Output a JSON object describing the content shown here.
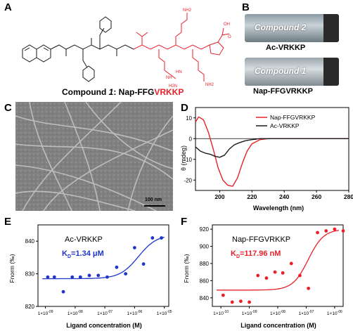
{
  "panels": {
    "a": "A",
    "b": "B",
    "c": "C",
    "d": "D",
    "e": "E",
    "f": "F"
  },
  "panel_a": {
    "caption_prefix": "Compound ",
    "caption_num": "1",
    "caption_colon": ": Nap-FFG",
    "caption_red": "VRKKP",
    "labels": [
      "NH2",
      "NH2",
      "HN",
      "NH",
      "H2N",
      "OH",
      "O"
    ]
  },
  "panel_b": {
    "vial_top_label": "Compound 2",
    "vial_top_caption": "Ac-VRKKP",
    "vial_bottom_label": "Compound 1",
    "vial_bottom_caption": "Nap-FFGVRKKP"
  },
  "panel_c": {
    "scale_label": "100 nm"
  },
  "panel_d": {
    "ylabel": "θ (mdeg)",
    "xlabel": "Wavelength (nm)",
    "xticks": [
      "200",
      "220",
      "240",
      "260",
      "280"
    ],
    "yticks": [
      "10",
      "0",
      "-10",
      "-20"
    ],
    "legend": [
      "Nap-FFGVRKKP",
      "Ac-VRKKP"
    ],
    "colors": {
      "red": "#e8202a",
      "black": "#1a1a1a"
    }
  },
  "panel_e": {
    "title": "Ac-VRKKP",
    "kd_label": "K",
    "kd_sub": "D",
    "kd_value": "=1.34 μM",
    "ylabel": "Fnorm (‰)",
    "xlabel": "Ligand concentration (M)",
    "yticks": [
      "840",
      "830",
      "820"
    ],
    "xticks": [
      "1×10",
      "1×10",
      "1×10",
      "1×10",
      "1×10"
    ],
    "xexp": [
      "-09",
      "-08",
      "-07",
      "-06",
      "-05"
    ],
    "color": "#1f35c9"
  },
  "panel_f": {
    "title": "Nap-FFGVRKKP",
    "kd_label": "K",
    "kd_sub": "D",
    "kd_value": "=117.96 nM",
    "ylabel": "Fnorm (‰)",
    "xlabel": "Ligand concentration (M)",
    "yticks": [
      "920",
      "900",
      "880",
      "860",
      "840"
    ],
    "xticks": [
      "1×10",
      "1×10",
      "1×10",
      "1×10",
      "1×10"
    ],
    "xexp": [
      "-10",
      "-09",
      "-08",
      "-07",
      "-06"
    ],
    "color": "#e8202a"
  },
  "chart_data": [
    {
      "type": "line",
      "ylabel": "θ (mdeg)",
      "xlabel": "Wavelength (nm)",
      "xlim": [
        185,
        280
      ],
      "ylim": [
        -25,
        15
      ],
      "series": [
        {
          "name": "Nap-FFGVRKKP",
          "x": [
            185,
            187,
            190,
            193,
            196,
            199,
            202,
            205,
            208,
            211,
            214,
            217,
            220,
            225,
            230,
            240,
            260,
            280
          ],
          "y": [
            8,
            10.5,
            9,
            3,
            -5,
            -14,
            -20,
            -22.5,
            -23,
            -19,
            -12,
            -6,
            -2.5,
            -0.5,
            0,
            0,
            0,
            0
          ]
        },
        {
          "name": "Ac-VRKKP",
          "x": [
            185,
            188,
            191,
            194,
            197,
            200,
            203,
            206,
            209,
            212,
            216,
            220,
            225,
            230,
            240,
            260,
            280
          ],
          "y": [
            -4,
            -6,
            -7,
            -7.5,
            -8.5,
            -9,
            -8,
            -5,
            -3,
            -2,
            -1,
            -0.5,
            0,
            0,
            0,
            0,
            0
          ]
        }
      ]
    },
    {
      "type": "scatter",
      "title": "Ac-VRKKP",
      "xlabel": "Ligand concentration (M)",
      "ylabel": "Fnorm (‰)",
      "ylim": [
        820,
        845
      ],
      "x": [
        1.2e-09,
        2e-09,
        4e-09,
        8e-09,
        1.5e-08,
        3e-08,
        6e-08,
        1.2e-07,
        2.5e-07,
        5e-07,
        1e-06,
        2e-06,
        4e-06,
        8e-06
      ],
      "y": [
        829,
        829,
        824.5,
        829,
        829,
        829.5,
        829.5,
        829,
        832,
        830,
        838,
        833,
        841,
        841
      ]
    },
    {
      "type": "scatter",
      "title": "Nap-FFGVRKKP",
      "xlabel": "Ligand concentration (M)",
      "ylabel": "Fnorm (‰)",
      "ylim": [
        830,
        925
      ],
      "x": [
        1.2e-10,
        2.5e-10,
        5e-10,
        1e-09,
        2e-09,
        4e-09,
        8e-09,
        1.5e-08,
        3e-08,
        6e-08,
        1.2e-07,
        2.5e-07,
        5e-07,
        1e-06,
        2e-06
      ],
      "y": [
        843,
        835,
        836,
        835,
        866,
        863,
        870,
        869,
        880,
        866,
        851,
        916,
        918,
        920,
        918
      ]
    }
  ]
}
